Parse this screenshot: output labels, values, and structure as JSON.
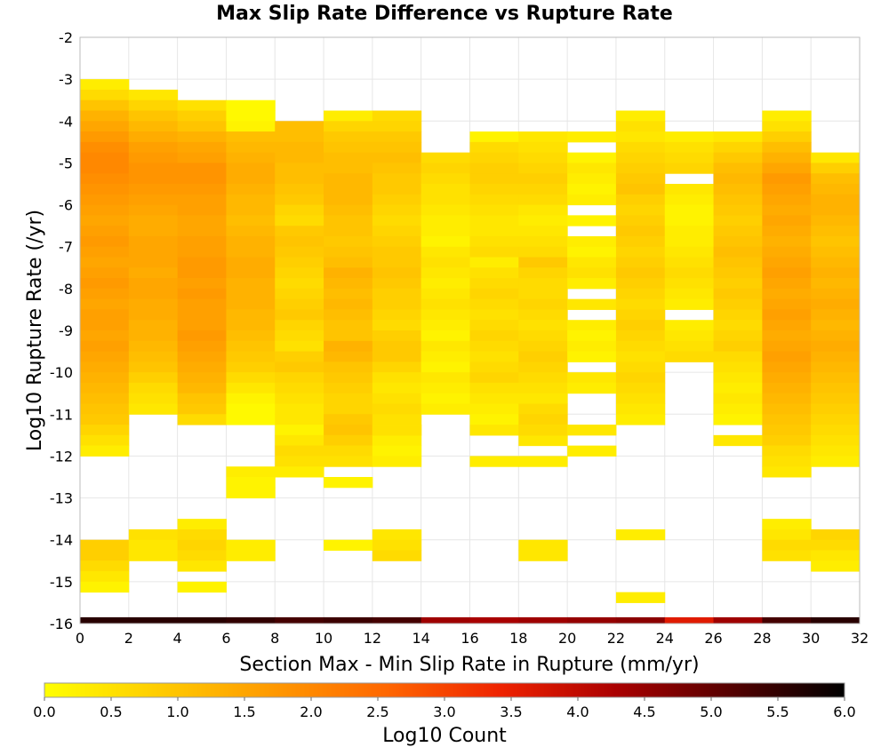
{
  "chart_data": {
    "type": "heatmap",
    "title": "Max Slip Rate Difference vs Rupture Rate",
    "xlabel": "Section Max - Min Slip Rate in Rupture (mm/yr)",
    "ylabel": "Log10 Rupture Rate (/yr)",
    "xlim": [
      0,
      32
    ],
    "ylim": [
      -16,
      -2
    ],
    "x_bin_width": 2,
    "y_bin_width": 0.25,
    "x_ticks": [
      "0",
      "2",
      "4",
      "6",
      "8",
      "10",
      "12",
      "14",
      "16",
      "18",
      "20",
      "22",
      "24",
      "26",
      "28",
      "30",
      "32"
    ],
    "y_ticks": [
      "-2",
      "-3",
      "-4",
      "-5",
      "-6",
      "-7",
      "-8",
      "-9",
      "-10",
      "-11",
      "-12",
      "-13",
      "-14",
      "-15",
      "-16"
    ],
    "grid": true,
    "colorbar": {
      "label": "Log10 Count",
      "min": 0,
      "max": 6,
      "ticks": [
        "0.0",
        "0.5",
        "1.0",
        "1.5",
        "2.0",
        "2.5",
        "3.0",
        "3.5",
        "4.0",
        "4.5",
        "5.0",
        "5.5",
        "6.0"
      ],
      "colors": [
        "#ffff00",
        "#ffcc00",
        "#ff9900",
        "#ff6600",
        "#ee2200",
        "#aa0000",
        "#550000",
        "#000000"
      ]
    },
    "columns": [
      {
        "x": 0,
        "y_top": -3.0,
        "values": [
          0.3,
          0.6,
          1.0,
          1.3,
          1.5,
          1.7,
          1.9,
          2.0,
          2.0,
          1.9,
          1.8,
          1.7,
          1.6,
          1.5,
          1.6,
          1.7,
          1.6,
          1.5,
          1.6,
          1.7,
          1.6,
          1.5,
          1.6,
          1.6,
          1.5,
          1.6,
          1.5,
          1.4,
          1.3,
          1.2,
          1.1,
          1.0,
          0.9,
          0.7,
          0.5,
          0.3
        ],
        "low_cells": [
          {
            "y": -14.0,
            "value": 0.8
          },
          {
            "y": -14.25,
            "value": 0.8
          },
          {
            "y": -14.5,
            "value": 0.6
          },
          {
            "y": -14.75,
            "value": 0.4
          },
          {
            "y": -15.0,
            "value": 0.2
          }
        ]
      },
      {
        "x": 2,
        "y_top": -3.25,
        "values": [
          0.4,
          0.7,
          1.0,
          1.2,
          1.4,
          1.6,
          1.7,
          1.8,
          1.8,
          1.7,
          1.6,
          1.5,
          1.4,
          1.4,
          1.5,
          1.5,
          1.5,
          1.4,
          1.5,
          1.5,
          1.4,
          1.4,
          1.3,
          1.3,
          1.2,
          1.1,
          1.0,
          0.8,
          0.6,
          0.5,
          0.4
        ],
        "low_cells": [
          {
            "y": -13.75,
            "value": 0.5
          },
          {
            "y": -14.0,
            "value": 0.4
          },
          {
            "y": -14.25,
            "value": 0.4
          }
        ]
      },
      {
        "x": 4,
        "y_top": -3.5,
        "values": [
          0.5,
          0.8,
          1.0,
          1.3,
          1.5,
          1.6,
          1.8,
          1.8,
          1.7,
          1.6,
          1.6,
          1.5,
          1.5,
          1.6,
          1.6,
          1.7,
          1.7,
          1.6,
          1.7,
          1.6,
          1.6,
          1.6,
          1.7,
          1.6,
          1.5,
          1.4,
          1.3,
          1.2,
          1.0,
          0.9,
          0.6
        ],
        "low_cells": [
          {
            "y": -13.5,
            "value": 0.3
          },
          {
            "y": -13.75,
            "value": 0.6
          },
          {
            "y": -14.0,
            "value": 0.7
          },
          {
            "y": -14.25,
            "value": 0.6
          },
          {
            "y": -14.5,
            "value": 0.4
          },
          {
            "y": -15.0,
            "value": 0.2
          }
        ]
      },
      {
        "x": 6,
        "y_top": -3.5,
        "values": [
          0.1,
          0.1,
          0.2,
          1.1,
          1.2,
          1.3,
          1.4,
          1.4,
          1.3,
          1.2,
          1.2,
          1.1,
          1.2,
          1.3,
          1.3,
          1.4,
          1.4,
          1.3,
          1.3,
          1.3,
          1.2,
          1.2,
          1.1,
          1.0,
          0.9,
          0.8,
          0.6,
          0.4,
          0.2,
          0.1,
          0.1
        ],
        "low_cells": [
          {
            "y": -12.25,
            "value": 0.3
          },
          {
            "y": -12.5,
            "value": 0.2
          },
          {
            "y": -12.75,
            "value": 0.2
          },
          {
            "y": -14.0,
            "value": 0.3
          },
          {
            "y": -14.25,
            "value": 0.3
          }
        ]
      },
      {
        "x": 8,
        "y_top": -4.0,
        "values": [
          1.1,
          1.1,
          1.2,
          1.2,
          1.1,
          1.1,
          1.0,
          0.9,
          0.7,
          0.6,
          0.9,
          1.0,
          0.9,
          0.8,
          0.7,
          0.6,
          0.7,
          0.8,
          0.9,
          0.7,
          0.6,
          0.5,
          0.8,
          0.9,
          0.7,
          0.6,
          0.5,
          0.4,
          0.4,
          0.2,
          0.4,
          0.6,
          0.5,
          0.3
        ],
        "low_cells": []
      },
      {
        "x": 10,
        "y_top": -3.75,
        "values": [
          0.3,
          0.7,
          0.9,
          1.0,
          1.1,
          1.1,
          1.2,
          1.2,
          1.2,
          1.1,
          1.0,
          1.0,
          0.9,
          1.0,
          1.1,
          1.3,
          1.2,
          1.1,
          1.2,
          1.1,
          1.0,
          1.0,
          1.3,
          1.2,
          1.0,
          0.9,
          0.8,
          0.7,
          0.7,
          0.9,
          1.0,
          0.8,
          0.6,
          0.5
        ],
        "low_cells": [
          {
            "y": -12.5,
            "value": 0.2
          },
          {
            "y": -14.0,
            "value": 0.2
          }
        ]
      },
      {
        "x": 12,
        "y_top": -3.75,
        "values": [
          0.6,
          0.7,
          0.9,
          1.0,
          1.1,
          1.0,
          0.9,
          0.9,
          0.8,
          0.7,
          0.6,
          0.7,
          0.8,
          0.9,
          0.9,
          1.0,
          0.9,
          0.8,
          0.8,
          0.7,
          0.6,
          0.8,
          0.9,
          0.9,
          0.7,
          0.5,
          0.4,
          0.5,
          0.6,
          0.5,
          0.4,
          0.3,
          0.2,
          0.3
        ],
        "low_cells": [
          {
            "y": -11.25,
            "value": 0.5
          },
          {
            "y": -13.75,
            "value": 0.4
          },
          {
            "y": -14.0,
            "value": 0.5
          },
          {
            "y": -14.25,
            "value": 0.6
          }
        ]
      },
      {
        "x": 14,
        "y_top": -4.75,
        "values": [
          0.6,
          0.7,
          0.6,
          0.5,
          0.5,
          0.4,
          0.3,
          0.3,
          0.2,
          0.4,
          0.5,
          0.4,
          0.3,
          0.4,
          0.5,
          0.4,
          0.3,
          0.2,
          0.4,
          0.3,
          0.2
        ],
        "low_cells": [
          {
            "y": -10.0,
            "value": 0.4
          },
          {
            "y": -10.25,
            "value": 0.3
          },
          {
            "y": -10.5,
            "value": 0.2
          },
          {
            "y": -10.75,
            "value": 0.3
          }
        ]
      },
      {
        "x": 16,
        "y_top": -4.25,
        "values": [
          0.2,
          0.6,
          0.7,
          0.8,
          0.8,
          0.7,
          0.6,
          0.5,
          0.4,
          0.4,
          0.5,
          0.6,
          0.3,
          0.5,
          0.6,
          0.7,
          0.6,
          0.5,
          0.6,
          0.7,
          0.6,
          0.5,
          0.6,
          0.7,
          0.5,
          0.4,
          0.3,
          0.2,
          0.3
        ],
        "low_cells": [
          {
            "y": -11.25,
            "value": 0.4
          },
          {
            "y": -12.0,
            "value": 0.3
          }
        ]
      },
      {
        "x": 18,
        "y_top": -4.25,
        "values": [
          0.4,
          0.5,
          0.6,
          0.7,
          0.8,
          0.7,
          0.6,
          0.4,
          0.3,
          0.4,
          0.5,
          0.6,
          0.9,
          0.7,
          0.6,
          0.6,
          0.7,
          0.6,
          0.5,
          0.6,
          0.7,
          0.8,
          0.7,
          0.6,
          0.5,
          0.4,
          0.6,
          0.7,
          0.5,
          0.4
        ],
        "low_cells": [
          {
            "y": -11.25,
            "value": 0.6
          },
          {
            "y": -12.0,
            "value": 0.3
          },
          {
            "y": -14.0,
            "value": 0.4
          },
          {
            "y": -14.25,
            "value": 0.4
          }
        ]
      },
      {
        "x": 20,
        "y_top": -4.25,
        "values": [
          0.3,
          null,
          0.2,
          0.4,
          0.3,
          0.2,
          0.3,
          null,
          0.2,
          null,
          0.3,
          0.2,
          0.4,
          0.5,
          0.3,
          null,
          0.4,
          null,
          0.3,
          0.2,
          0.3,
          0.2,
          null,
          0.4,
          0.3,
          null,
          null,
          null,
          null,
          null,
          0.3
        ],
        "low_cells": [
          {
            "y": -11.25,
            "value": 0.4
          }
        ]
      },
      {
        "x": 22,
        "y_top": -3.75,
        "values": [
          0.3,
          0.5,
          0.4,
          0.6,
          0.7,
          0.8,
          0.9,
          1.0,
          0.8,
          0.7,
          0.8,
          0.9,
          0.8,
          0.7,
          0.8,
          0.9,
          0.8,
          0.7,
          0.6,
          0.7,
          0.8,
          0.7,
          0.6,
          0.5,
          0.6,
          0.7,
          0.6,
          0.5,
          0.4,
          0.3
        ],
        "low_cells": [
          {
            "y": -13.75,
            "value": 0.3
          },
          {
            "y": -15.25,
            "value": 0.3
          }
        ]
      },
      {
        "x": 24,
        "y_top": -4.25,
        "values": [
          0.3,
          0.5,
          0.6,
          0.7,
          null,
          0.4,
          0.3,
          0.2,
          0.2,
          0.3,
          0.3,
          0.4,
          0.5,
          0.6,
          0.5,
          0.4,
          0.3,
          null,
          0.3,
          0.4,
          0.5,
          0.6
        ],
        "low_cells": []
      },
      {
        "x": 26,
        "y_top": -4.25,
        "values": [
          0.4,
          0.7,
          0.9,
          1.1,
          1.2,
          1.1,
          1.0,
          0.9,
          0.8,
          0.9,
          1.0,
          1.1,
          1.0,
          0.9,
          0.8,
          0.9,
          0.8,
          0.7,
          0.6,
          0.7,
          0.8,
          0.6,
          0.5,
          0.4,
          0.3,
          0.4,
          0.3,
          0.2,
          null,
          0.4
        ],
        "low_cells": []
      },
      {
        "x": 28,
        "y_top": -3.75,
        "values": [
          0.3,
          0.5,
          0.8,
          1.1,
          1.3,
          1.5,
          1.7,
          1.6,
          1.5,
          1.4,
          1.5,
          1.4,
          1.3,
          1.4,
          1.5,
          1.6,
          1.5,
          1.4,
          1.5,
          1.6,
          1.5,
          1.4,
          1.5,
          1.6,
          1.5,
          1.4,
          1.3,
          1.2,
          1.1,
          1.0,
          0.9,
          0.8,
          0.6,
          0.5,
          0.4
        ],
        "low_cells": [
          {
            "y": -13.5,
            "value": 0.3
          },
          {
            "y": -13.75,
            "value": 0.4
          },
          {
            "y": -14.0,
            "value": 0.6
          },
          {
            "y": -14.25,
            "value": 0.5
          }
        ]
      },
      {
        "x": 30,
        "y_top": -4.75,
        "values": [
          0.4,
          0.8,
          1.1,
          1.2,
          1.3,
          1.3,
          1.2,
          1.1,
          1.0,
          1.1,
          1.2,
          1.3,
          1.2,
          1.3,
          1.4,
          1.3,
          1.2,
          1.3,
          1.4,
          1.3,
          1.2,
          1.1,
          1.0,
          0.9,
          0.8,
          0.7,
          0.6,
          0.5,
          0.4,
          0.3
        ],
        "low_cells": [
          {
            "y": -13.75,
            "value": 0.7
          },
          {
            "y": -14.0,
            "value": 0.6
          },
          {
            "y": -14.25,
            "value": 0.4
          },
          {
            "y": -14.5,
            "value": 0.3
          }
        ]
      }
    ],
    "bottom_row": {
      "y": -16.0,
      "values": [
        5.6,
        5.6,
        5.6,
        5.5,
        5.3,
        5.4,
        5.3,
        4.4,
        4.3,
        4.4,
        4.5,
        4.6,
        3.6,
        4.4,
        5.3,
        5.6
      ]
    }
  }
}
